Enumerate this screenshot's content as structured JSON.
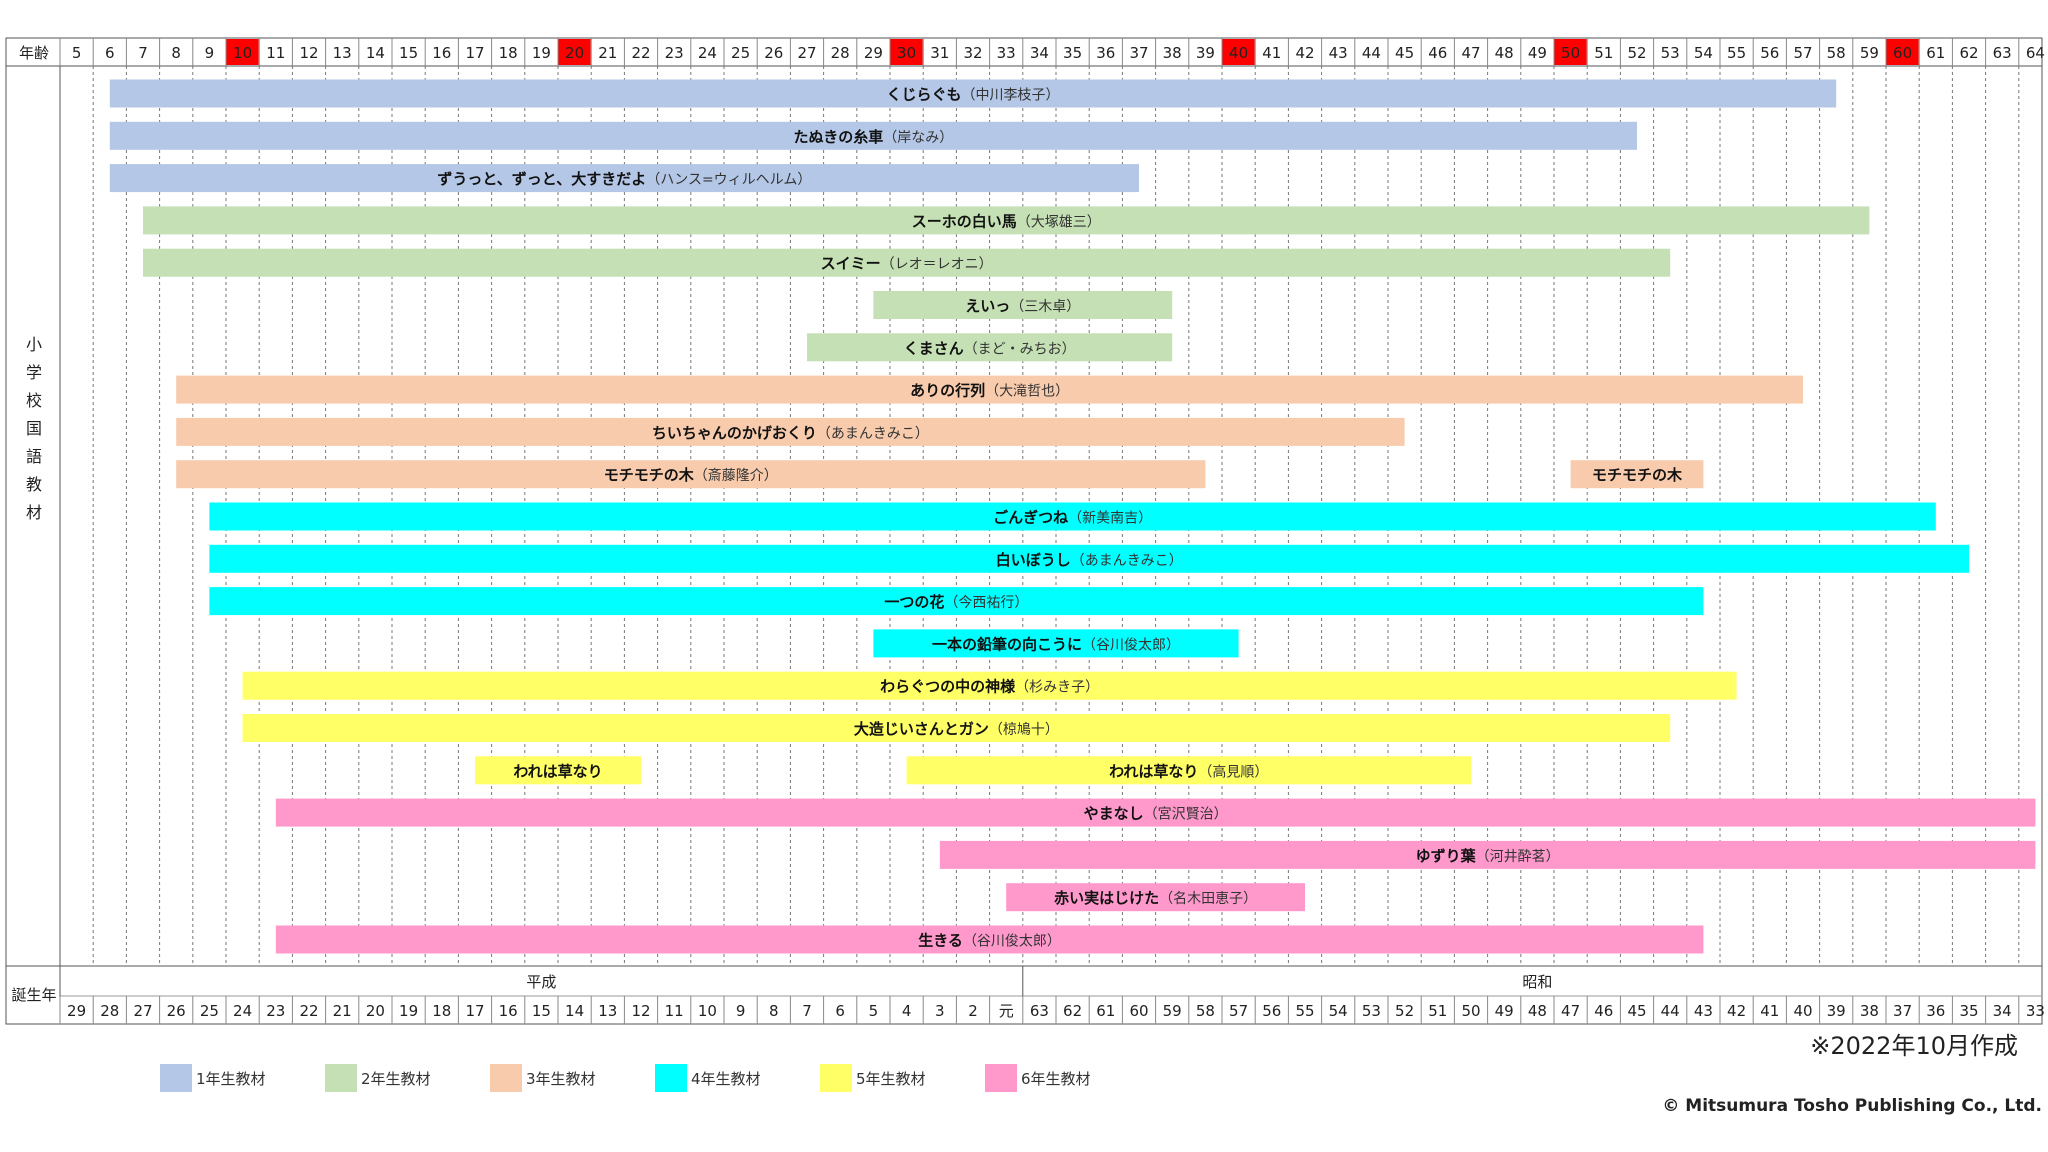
{
  "chart_data": {
    "type": "timeline",
    "age_label": "年齢",
    "birth_label": "誕生年",
    "category_label": "小学校国語教材",
    "ages": [
      "5",
      "6",
      "7",
      "8",
      "9",
      "10",
      "11",
      "12",
      "13",
      "14",
      "15",
      "16",
      "17",
      "18",
      "19",
      "20",
      "21",
      "22",
      "23",
      "24",
      "25",
      "26",
      "27",
      "28",
      "29",
      "30",
      "31",
      "32",
      "33",
      "34",
      "35",
      "36",
      "37",
      "38",
      "39",
      "40",
      "41",
      "42",
      "43",
      "44",
      "45",
      "46",
      "47",
      "48",
      "49",
      "50",
      "51",
      "52",
      "53",
      "54",
      "55",
      "56",
      "57",
      "58",
      "59",
      "60",
      "61",
      "62",
      "63",
      "64"
    ],
    "highlight_ages": [
      "10",
      "20",
      "30",
      "40",
      "50",
      "60"
    ],
    "highlight_color": "#ff0000",
    "birth_years": [
      "29",
      "28",
      "27",
      "26",
      "25",
      "24",
      "23",
      "22",
      "21",
      "20",
      "19",
      "18",
      "17",
      "16",
      "15",
      "14",
      "13",
      "12",
      "11",
      "10",
      "9",
      "8",
      "7",
      "6",
      "5",
      "4",
      "3",
      "2",
      "元",
      "63",
      "62",
      "61",
      "60",
      "59",
      "58",
      "57",
      "56",
      "55",
      "54",
      "53",
      "52",
      "51",
      "50",
      "49",
      "48",
      "47",
      "46",
      "45",
      "44",
      "43",
      "42",
      "41",
      "40",
      "39",
      "38",
      "37",
      "36",
      "35",
      "34",
      "33"
    ],
    "eras": [
      {
        "name": "平成",
        "from_age": "5",
        "to_age": "33"
      },
      {
        "name": "昭和",
        "from_age": "34",
        "to_age": "64"
      }
    ],
    "grades": [
      {
        "label": "1年生教材",
        "color": "#b4c7e7"
      },
      {
        "label": "2年生教材",
        "color": "#c5e0b4"
      },
      {
        "label": "3年生教材",
        "color": "#f8cbad"
      },
      {
        "label": "4年生教材",
        "color": "#00ffff"
      },
      {
        "label": "5年生教材",
        "color": "#ffff66"
      },
      {
        "label": "6年生教材",
        "color": "#ff99cc"
      }
    ],
    "rows": [
      {
        "bars": [
          {
            "grade": 0,
            "start": 6,
            "end": 58,
            "title": "くじらぐも",
            "author": "（中川李枝子）"
          }
        ]
      },
      {
        "bars": [
          {
            "grade": 0,
            "start": 6,
            "end": 52,
            "title": "たぬきの糸車",
            "author": "（岸なみ）"
          }
        ]
      },
      {
        "bars": [
          {
            "grade": 0,
            "start": 6,
            "end": 37,
            "title": "ずうっと、ずっと、大すきだよ",
            "author": "（ハンス=ウィルヘルム）"
          }
        ]
      },
      {
        "bars": [
          {
            "grade": 1,
            "start": 7,
            "end": 59,
            "title": "スーホの白い馬",
            "author": "（大塚雄三）"
          }
        ]
      },
      {
        "bars": [
          {
            "grade": 1,
            "start": 7,
            "end": 53,
            "title": "スイミー",
            "author": "（レオ＝レオニ）"
          }
        ]
      },
      {
        "bars": [
          {
            "grade": 1,
            "start": 29,
            "end": 38,
            "title": "えいっ",
            "author": "（三木卓）"
          }
        ]
      },
      {
        "bars": [
          {
            "grade": 1,
            "start": 27,
            "end": 38,
            "title": "くまさん",
            "author": "（まど・みちお）"
          }
        ]
      },
      {
        "bars": [
          {
            "grade": 2,
            "start": 8,
            "end": 57,
            "title": "ありの行列",
            "author": "（大滝哲也）"
          }
        ]
      },
      {
        "bars": [
          {
            "grade": 2,
            "start": 8,
            "end": 45,
            "title": "ちいちゃんのかげおくり",
            "author": "（あまんきみこ）"
          }
        ]
      },
      {
        "bars": [
          {
            "grade": 2,
            "start": 8,
            "end": 39,
            "title": "モチモチの木",
            "author": "（斎藤隆介）"
          },
          {
            "grade": 2,
            "start": 50,
            "end": 54,
            "title": "モチモチの木",
            "author": ""
          }
        ]
      },
      {
        "bars": [
          {
            "grade": 3,
            "start": 9,
            "end": 61,
            "title": "ごんぎつね",
            "author": "（新美南吉）"
          }
        ]
      },
      {
        "bars": [
          {
            "grade": 3,
            "start": 9,
            "end": 62,
            "title": "白いぼうし",
            "author": "（あまんきみこ）"
          }
        ]
      },
      {
        "bars": [
          {
            "grade": 3,
            "start": 9,
            "end": 54,
            "title": "一つの花",
            "author": "（今西祐行）"
          }
        ]
      },
      {
        "bars": [
          {
            "grade": 3,
            "start": 29,
            "end": 40,
            "title": "一本の鉛筆の向こうに",
            "author": "（谷川俊太郎）"
          }
        ]
      },
      {
        "bars": [
          {
            "grade": 4,
            "start": 10,
            "end": 55,
            "title": "わらぐつの中の神様",
            "author": "（杉みき子）"
          }
        ]
      },
      {
        "bars": [
          {
            "grade": 4,
            "start": 10,
            "end": 53,
            "title": "大造じいさんとガン",
            "author": "（椋鳩十）"
          }
        ]
      },
      {
        "bars": [
          {
            "grade": 4,
            "start": 17,
            "end": 22,
            "title": "われは草なり",
            "author": ""
          },
          {
            "grade": 4,
            "start": 30,
            "end": 47,
            "title": "われは草なり",
            "author": "（高見順）"
          }
        ]
      },
      {
        "bars": [
          {
            "grade": 5,
            "start": 11,
            "end": 64,
            "title": "やまなし",
            "author": "（宮沢賢治）"
          }
        ]
      },
      {
        "bars": [
          {
            "grade": 5,
            "start": 31,
            "end": 64,
            "title": "ゆずり葉",
            "author": "（河井酔茗）"
          }
        ]
      },
      {
        "bars": [
          {
            "grade": 5,
            "start": 33,
            "end": 42,
            "title": "赤い実はじけた",
            "author": "（名木田恵子）"
          }
        ]
      },
      {
        "bars": [
          {
            "grade": 5,
            "start": 11,
            "end": 54,
            "title": "生きる",
            "author": "（谷川俊太郎）"
          }
        ]
      }
    ]
  },
  "note": "※2022年10月作成",
  "copyright": "© Mitsumura Tosho Publishing Co., Ltd."
}
